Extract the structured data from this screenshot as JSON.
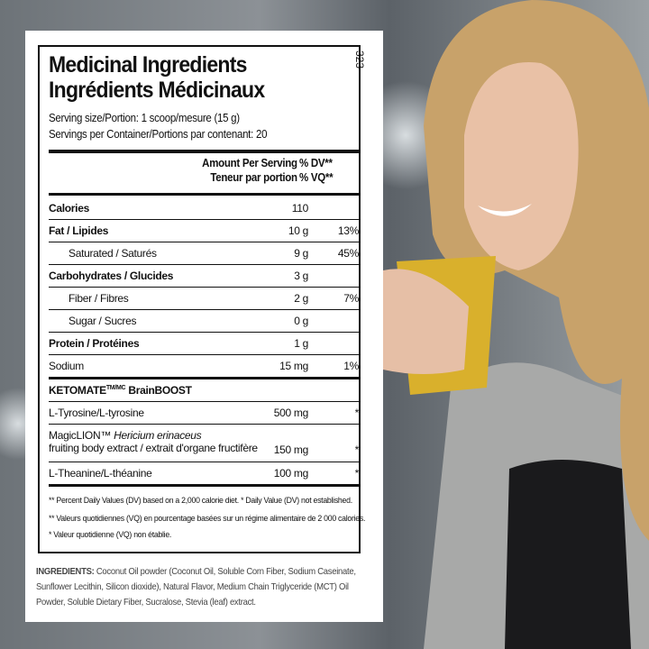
{
  "label": {
    "code": "323",
    "title_en": "Medicinal Ingredients",
    "title_fr": "Ingrédients Médicinaux",
    "serving_size": "Serving size/Portion: 1 scoop/mesure (15 g)",
    "servings": "Servings per Container/Portions par contenant: 20",
    "header": {
      "amount_en": "Amount Per Serving",
      "amount_fr": "Teneur par portion",
      "dv_en": "% DV**",
      "dv_fr": "% VQ**"
    },
    "rows": [
      {
        "name": "Calories",
        "amount": "110"
      },
      {
        "name": "Fat / Lipides",
        "amount": "10 g",
        "dv": "13%"
      },
      {
        "name": "Saturated / Saturés",
        "amount": "9 g",
        "dv": "45%"
      },
      {
        "name": "Carbohydrates / Glucides",
        "amount": "3 g"
      },
      {
        "name": "Fiber / Fibres",
        "amount": "2 g",
        "dv": "7%"
      },
      {
        "name": "Sugar / Sucres",
        "amount": "0 g"
      },
      {
        "name": "Protein / Protéines",
        "amount": "1 g"
      },
      {
        "name": "Sodium",
        "amount": "15 mg",
        "dv": "1%"
      }
    ],
    "section": {
      "name": "KETOMATE",
      "mark": "TM/MC",
      "suffix": "BrainBOOST"
    },
    "ingredients_rows": [
      {
        "name": "L-Tyrosine/L-tyrosine",
        "amount": "500 mg",
        "dv": "*"
      },
      {
        "name": "MagicLION™",
        "latin": "Hericium erinaceus",
        "name2": "fruiting body extract / extrait d'organe fructifère",
        "amount": "150 mg",
        "dv": "*"
      },
      {
        "name": "L-Theanine/L-théanine",
        "amount": "100 mg",
        "dv": "*"
      }
    ],
    "footnotes": [
      "** Percent Daily Values (DV) based on a 2,000 calorie diet. * Daily Value (DV) not established.",
      "** Valeurs quotidiennes (VQ) en pourcentage basées sur un régime alimentaire de 2 000 calories.",
      "* Valeur quotidienne (VQ) non établie."
    ],
    "ingredients_label": "INGREDIENTS:",
    "ingredients_text": "Coconut Oil powder (Coconut Oil, Soluble Corn Fiber, Sodium Caseinate, Sunflower Lecithin, Silicon dioxide), Natural Flavor, Medium Chain Triglyceride (MCT) Oil Powder, Soluble Dietary Fiber, Sucralose, Stevia (leaf) extract."
  }
}
